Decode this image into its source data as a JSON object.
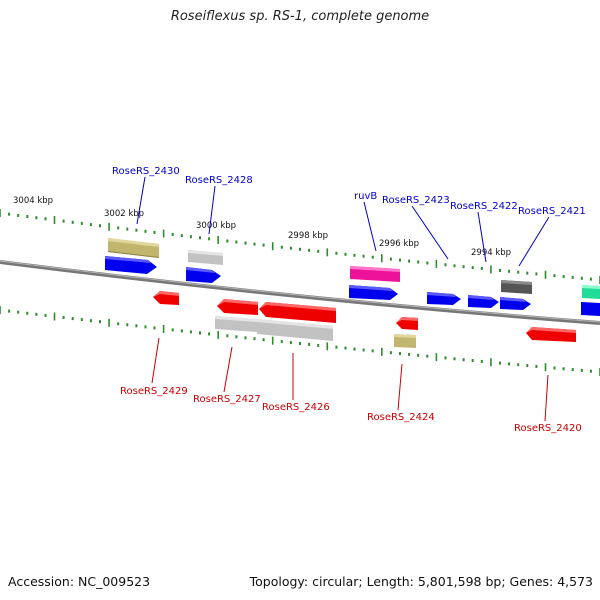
{
  "title": "Roseiflexus sp. RS-1, complete genome",
  "footer": {
    "accession": "Accession: NC_009523",
    "stats": "Topology: circular; Length: 5,801,598 bp; Genes: 4,573"
  },
  "scale_labels": [
    "3004 kbp",
    "3002 kbp",
    "3000 kbp",
    "2998 kbp",
    "2996 kbp",
    "2994 kbp"
  ],
  "colors": {
    "forward_label": "#0000cc",
    "reverse_label": "#cc0000",
    "backbone": "#888888",
    "tick": "#2e8b2e",
    "cds_blue": "#0000ee",
    "cds_red": "#ee0000",
    "gene_khaki": "#c2b66e",
    "gene_gray": "#bbbbbb",
    "gene_dark": "#555555",
    "gene_magenta": "#ee1199",
    "gene_teal": "#22dd99"
  },
  "gene_labels_forward": [
    "RoseRS_2430",
    "RoseRS_2428",
    "ruvB",
    "RoseRS_2423",
    "RoseRS_2422",
    "RoseRS_2421"
  ],
  "gene_labels_reverse": [
    "RoseRS_2429",
    "RoseRS_2427",
    "RoseRS_2426",
    "RoseRS_2424",
    "RoseRS_2420"
  ]
}
